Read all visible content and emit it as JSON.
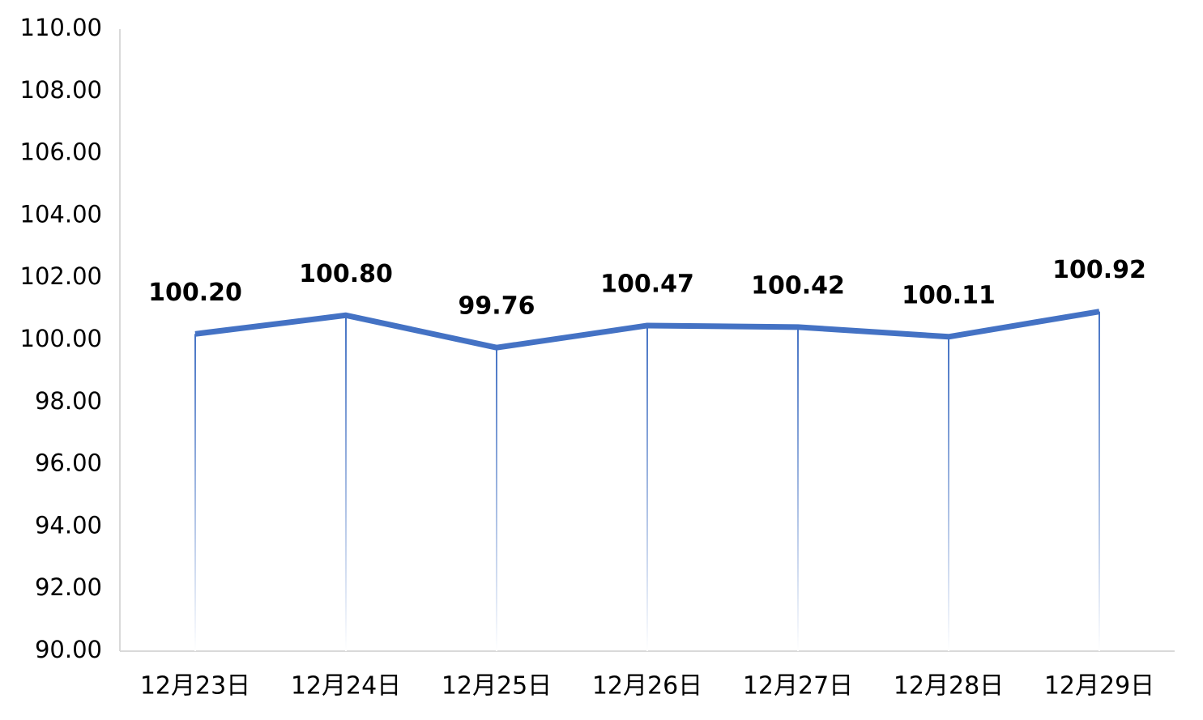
{
  "chart_data": {
    "type": "line",
    "categories": [
      "12月23日",
      "12月24日",
      "12月25日",
      "12月26日",
      "12月27日",
      "12月28日",
      "12月29日"
    ],
    "series": [
      {
        "color": "#4472c4",
        "values": [
          100.2,
          100.8,
          99.76,
          100.47,
          100.42,
          100.11,
          100.92
        ],
        "value_labels": [
          "100.20",
          "100.80",
          "99.76",
          "100.47",
          "100.42",
          "100.11",
          "100.92"
        ]
      }
    ],
    "ylim": [
      90,
      110
    ],
    "yticks": [
      {
        "value": 90,
        "label": "90.00"
      },
      {
        "value": 92,
        "label": "92.00"
      },
      {
        "value": 94,
        "label": "94.00"
      },
      {
        "value": 96,
        "label": "96.00"
      },
      {
        "value": 98,
        "label": "98.00"
      },
      {
        "value": 100,
        "label": "100.00"
      },
      {
        "value": 102,
        "label": "102.00"
      },
      {
        "value": 104,
        "label": "104.00"
      },
      {
        "value": 106,
        "label": "106.00"
      },
      {
        "value": 108,
        "label": "108.00"
      },
      {
        "value": 110,
        "label": "110.00"
      }
    ],
    "grid": false
  }
}
